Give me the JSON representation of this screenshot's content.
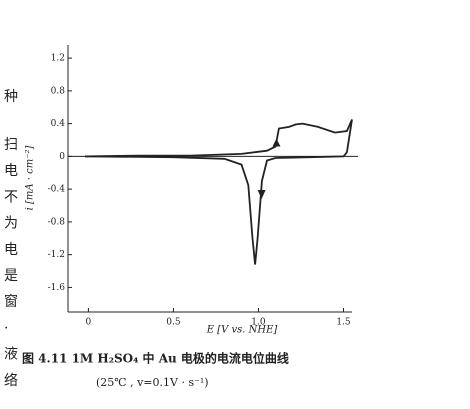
{
  "chart_data": {
    "type": "line",
    "caption": "图 4.11   1M H₂SO₄ 中 Au 电极的电流电位曲线",
    "caption_note": "(25℃ , v=0.1V · s⁻¹)",
    "x_label": "E [V vs. NHE]",
    "y_label": "i [mA · cm⁻²]",
    "side_text": [
      "种",
      "扫",
      "电",
      "不",
      "为",
      "电",
      "是",
      "窗",
      "·",
      "液",
      "络"
    ],
    "xlim": [
      -0.12,
      1.55
    ],
    "ylim": [
      -1.9,
      1.36
    ],
    "xticks": [
      0,
      0.5,
      {
        "value": 1,
        "label": "1.0"
      },
      1.5
    ],
    "yticks": [
      1.2,
      0.8,
      0.4,
      0,
      -0.4,
      -0.8,
      -1.2,
      -1.6
    ],
    "series": [
      {
        "color": "#222",
        "x": [
          -0.02,
          0.3,
          0.6,
          0.9,
          1.05,
          1.1,
          1.12,
          1.18,
          1.22,
          1.26,
          1.35,
          1.45,
          1.52,
          1.55
        ],
        "values": [
          0.0,
          0.01,
          0.01,
          0.03,
          0.07,
          0.12,
          0.34,
          0.36,
          0.39,
          0.4,
          0.36,
          0.29,
          0.31,
          0.45
        ]
      },
      {
        "color": "#222",
        "x": [
          1.55,
          1.52,
          1.5,
          1.3,
          1.1,
          1.05,
          1.02,
          0.995,
          0.98,
          0.965,
          0.94,
          0.9,
          0.8,
          0.5,
          -0.02
        ],
        "values": [
          0.45,
          0.05,
          0.0,
          -0.01,
          -0.02,
          -0.05,
          -0.3,
          -1.0,
          -1.32,
          -1.0,
          -0.35,
          -0.1,
          -0.03,
          -0.01,
          0.0
        ]
      }
    ]
  }
}
